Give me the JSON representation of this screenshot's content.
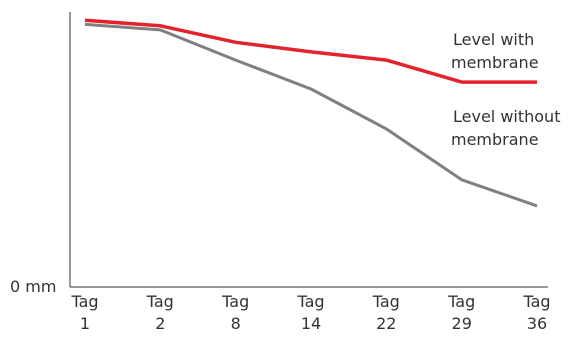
{
  "chart_data": {
    "type": "line",
    "categories": [
      [
        "Tag",
        "1"
      ],
      [
        "Tag",
        "2"
      ],
      [
        "Tag",
        "8"
      ],
      [
        "Tag",
        "14"
      ],
      [
        "Tag",
        "22"
      ],
      [
        "Tag",
        "29"
      ],
      [
        "Tag",
        "36"
      ]
    ],
    "y_axis_label": "0 mm",
    "ylim": [
      0,
      100
    ],
    "grid": false,
    "series": [
      {
        "name": [
          "Level with",
          "membrane"
        ],
        "color": "#e3232c",
        "values": [
          97,
          95,
          89,
          85.5,
          82.5,
          74.5,
          74.5
        ]
      },
      {
        "name": [
          "Level without",
          "membrane"
        ],
        "color": "#808080",
        "values": [
          95.5,
          93.5,
          82.5,
          72,
          57.5,
          39,
          29.5
        ]
      }
    ]
  }
}
